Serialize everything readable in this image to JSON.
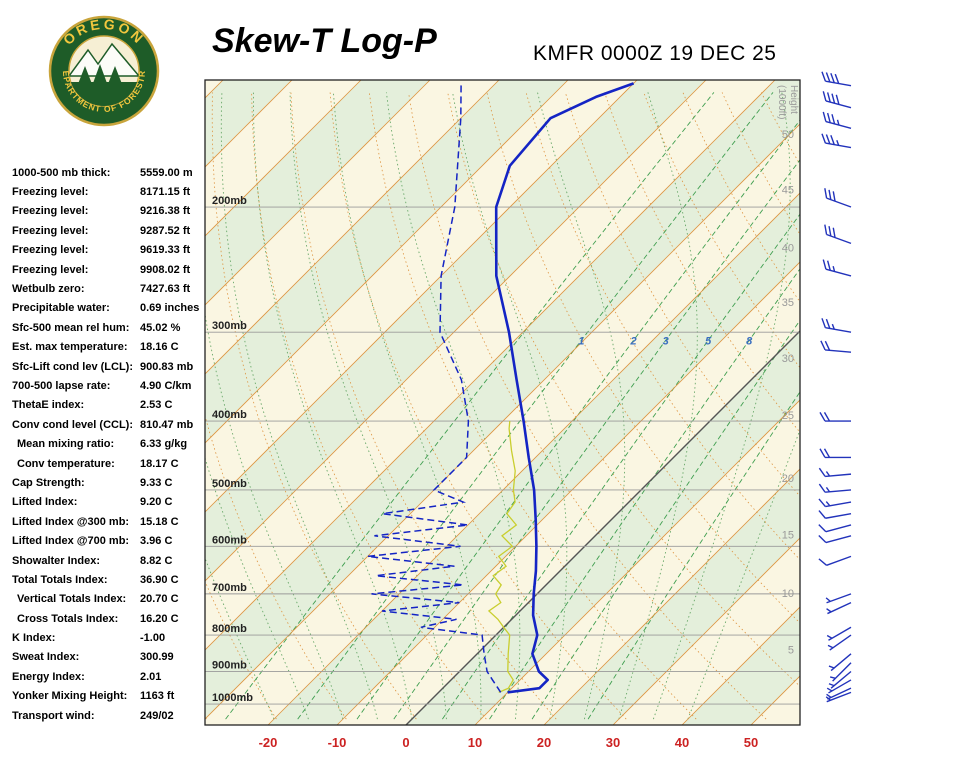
{
  "header": {
    "title": "Skew-T Log-P",
    "station_line": "KMFR 0000Z 19 DEC 25"
  },
  "logo": {
    "top_text": "OREGON",
    "bottom_text": "DEPARTMENT OF FORESTRY"
  },
  "indices": [
    {
      "label": "1000-500 mb thick:",
      "value": "5559.00 m"
    },
    {
      "label": "Freezing level:",
      "value": "8171.15 ft"
    },
    {
      "label": "Freezing level:",
      "value": "9216.38 ft"
    },
    {
      "label": "Freezing level:",
      "value": "9287.52 ft"
    },
    {
      "label": "Freezing level:",
      "value": "9619.33 ft"
    },
    {
      "label": "Freezing level:",
      "value": "9908.02 ft"
    },
    {
      "label": "Wetbulb zero:",
      "value": "7427.63 ft"
    },
    {
      "label": "Precipitable water:",
      "value": "0.69 inches"
    },
    {
      "label": "Sfc-500 mean rel hum:",
      "value": "45.02 %"
    },
    {
      "label": "Est. max temperature:",
      "value": "18.16 C"
    },
    {
      "label": "Sfc-Lift cond lev (LCL):",
      "value": "900.83 mb"
    },
    {
      "label": "700-500 lapse rate:",
      "value": "4.90 C/km"
    },
    {
      "label": "ThetaE index:",
      "value": "2.53 C"
    },
    {
      "label": "Conv cond level (CCL):",
      "value": "810.47 mb"
    },
    {
      "label": "Mean mixing ratio:",
      "value": "6.33 g/kg",
      "indent": true
    },
    {
      "label": "Conv temperature:",
      "value": "18.17 C",
      "indent": true
    },
    {
      "label": "Cap Strength:",
      "value": "9.33 C"
    },
    {
      "label": "Lifted Index:",
      "value": "9.20 C"
    },
    {
      "label": "Lifted Index @300 mb:",
      "value": "15.18 C"
    },
    {
      "label": "Lifted Index @700 mb:",
      "value": "3.96 C"
    },
    {
      "label": "Showalter Index:",
      "value": "8.82 C"
    },
    {
      "label": "Total Totals Index:",
      "value": "36.90 C"
    },
    {
      "label": "Vertical Totals Index:",
      "value": "20.70 C",
      "indent": true
    },
    {
      "label": "Cross Totals Index:",
      "value": "16.20 C",
      "indent": true
    },
    {
      "label": "K Index:",
      "value": "-1.00"
    },
    {
      "label": "Sweat Index:",
      "value": "300.99"
    },
    {
      "label": "Energy Index:",
      "value": "2.01"
    },
    {
      "label": "Yonker Mixing Height:",
      "value": "1163 ft"
    },
    {
      "label": "Transport wind:",
      "value": "249/02"
    }
  ],
  "chart_data": {
    "type": "skewt-log-p",
    "title": "Skew-T Log-P",
    "station": "KMFR",
    "valid": "0000Z 19 DEC 25",
    "pressure_labels": [
      "200mb",
      "300mb",
      "400mb",
      "500mb",
      "600mb",
      "700mb",
      "800mb",
      "900mb",
      "1000mb"
    ],
    "pressure_levels_mb": [
      200,
      300,
      400,
      500,
      600,
      700,
      800,
      900,
      1000
    ],
    "temp_axis_c": [
      -20,
      -10,
      0,
      10,
      20,
      30,
      40,
      50
    ],
    "height_axis_label": "Height (1000ft)",
    "height_scale_kft": [
      50,
      45,
      40,
      35,
      30,
      25,
      20,
      15,
      10,
      5
    ],
    "height_scale_p_mb": [
      158,
      189,
      228,
      272,
      326,
      392,
      481,
      578,
      698,
      838
    ],
    "mixing_ratio_labels_gkg": [
      1,
      2,
      3,
      5,
      8
    ],
    "mixing_ratio_lines_gkg": [
      0.4,
      1,
      2,
      3,
      5,
      8,
      12,
      20
    ],
    "isotherm_step_c": 10,
    "temperature_profile": {
      "units": "pressure_mb, temp_c",
      "points_p_t": [
        [
          963,
          10
        ],
        [
          950,
          14
        ],
        [
          925,
          14
        ],
        [
          900,
          11.5
        ],
        [
          850,
          8
        ],
        [
          800,
          6
        ],
        [
          750,
          2.5
        ],
        [
          700,
          -0.5
        ],
        [
          650,
          -3.5
        ],
        [
          600,
          -7
        ],
        [
          550,
          -11
        ],
        [
          500,
          -15.5
        ],
        [
          450,
          -21
        ],
        [
          400,
          -27
        ],
        [
          350,
          -34
        ],
        [
          300,
          -42
        ],
        [
          250,
          -52
        ],
        [
          200,
          -62
        ],
        [
          175,
          -66
        ],
        [
          150,
          -67
        ],
        [
          140,
          -63.5
        ],
        [
          134,
          -60
        ]
      ]
    },
    "dewpoint_profile": {
      "units": "pressure_mb, dewpoint_c",
      "points_p_t": [
        [
          963,
          9
        ],
        [
          950,
          8
        ],
        [
          925,
          6
        ],
        [
          900,
          4
        ],
        [
          850,
          1
        ],
        [
          800,
          -2
        ],
        [
          780,
          -12
        ],
        [
          760,
          -8
        ],
        [
          740,
          -20
        ],
        [
          720,
          -10
        ],
        [
          700,
          -24
        ],
        [
          680,
          -12
        ],
        [
          660,
          -26
        ],
        [
          640,
          -16
        ],
        [
          620,
          -30
        ],
        [
          600,
          -18
        ],
        [
          580,
          -32
        ],
        [
          560,
          -20
        ],
        [
          540,
          -34
        ],
        [
          520,
          -24
        ],
        [
          500,
          -30
        ],
        [
          450,
          -30
        ],
        [
          400,
          -35
        ],
        [
          350,
          -42
        ],
        [
          300,
          -52
        ],
        [
          250,
          -60
        ],
        [
          200,
          -68
        ],
        [
          150,
          -80
        ],
        [
          134,
          -85
        ]
      ]
    },
    "wetbulb_profile": {
      "units": "pressure_mb, wetbulb_c",
      "points_p_t": [
        [
          963,
          8.7
        ],
        [
          950,
          9.5
        ],
        [
          925,
          9
        ],
        [
          900,
          7
        ],
        [
          850,
          4.5
        ],
        [
          800,
          2
        ],
        [
          780,
          0
        ],
        [
          760,
          -2
        ],
        [
          740,
          -4.5
        ],
        [
          720,
          -4
        ],
        [
          700,
          -6
        ],
        [
          680,
          -6.5
        ],
        [
          660,
          -9
        ],
        [
          640,
          -8.5
        ],
        [
          620,
          -11
        ],
        [
          600,
          -10.5
        ],
        [
          580,
          -13.5
        ],
        [
          560,
          -13
        ],
        [
          540,
          -16
        ],
        [
          520,
          -16.5
        ],
        [
          500,
          -18.5
        ],
        [
          470,
          -21
        ],
        [
          440,
          -24.5
        ],
        [
          410,
          -28
        ],
        [
          400,
          -29
        ]
      ]
    },
    "winds": [
      {
        "p": 135,
        "dir": 280,
        "spd": 40
      },
      {
        "p": 145,
        "dir": 285,
        "spd": 40
      },
      {
        "p": 155,
        "dir": 285,
        "spd": 35
      },
      {
        "p": 165,
        "dir": 280,
        "spd": 35
      },
      {
        "p": 200,
        "dir": 290,
        "spd": 30
      },
      {
        "p": 225,
        "dir": 290,
        "spd": 30
      },
      {
        "p": 250,
        "dir": 285,
        "spd": 25
      },
      {
        "p": 300,
        "dir": 280,
        "spd": 25
      },
      {
        "p": 320,
        "dir": 275,
        "spd": 20
      },
      {
        "p": 400,
        "dir": 270,
        "spd": 20
      },
      {
        "p": 450,
        "dir": 270,
        "spd": 20
      },
      {
        "p": 475,
        "dir": 265,
        "spd": 15
      },
      {
        "p": 500,
        "dir": 265,
        "spd": 15
      },
      {
        "p": 520,
        "dir": 260,
        "spd": 15
      },
      {
        "p": 540,
        "dir": 260,
        "spd": 10
      },
      {
        "p": 560,
        "dir": 255,
        "spd": 10
      },
      {
        "p": 580,
        "dir": 255,
        "spd": 10
      },
      {
        "p": 620,
        "dir": 250,
        "spd": 10
      },
      {
        "p": 700,
        "dir": 250,
        "spd": 5
      },
      {
        "p": 720,
        "dir": 245,
        "spd": 5
      },
      {
        "p": 780,
        "dir": 240,
        "spd": 5
      },
      {
        "p": 800,
        "dir": 235,
        "spd": 5
      },
      {
        "p": 850,
        "dir": 230,
        "spd": 5
      },
      {
        "p": 875,
        "dir": 225,
        "spd": 5
      },
      {
        "p": 900,
        "dir": 230,
        "spd": 2
      },
      {
        "p": 925,
        "dir": 240,
        "spd": 2
      },
      {
        "p": 950,
        "dir": 245,
        "spd": 2
      },
      {
        "p": 963,
        "dir": 249,
        "spd": 2
      }
    ],
    "colors": {
      "temperature": "#1424c4",
      "dewpoint": "#1424c4",
      "wetbulb": "#c9ce2e",
      "isotherm": "#dd9440",
      "zero_isotherm": "#555555",
      "dry_adiabat": "#dd9440",
      "moist_adiabat": "#69a869",
      "mixing_ratio": "#3f9e4f",
      "mixing_label": "#3a6fc0",
      "band_green": "#e4efdb",
      "band_cream": "#faf6e2",
      "pressure_line": "#9a9a9a",
      "pressure_label": "#222222",
      "axis_temp": "#cc2222",
      "height_text": "#999999",
      "wind_barb": "#2233bb"
    }
  }
}
